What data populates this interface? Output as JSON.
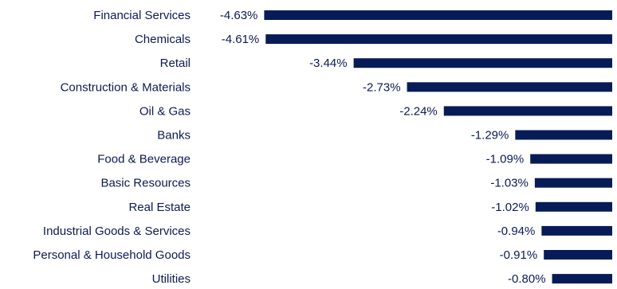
{
  "chart_data": {
    "type": "bar",
    "orientation": "horizontal",
    "categories": [
      "Financial Services",
      "Chemicals",
      "Retail",
      "Construction & Materials",
      "Oil & Gas",
      "Banks",
      "Food & Beverage",
      "Basic Resources",
      "Real Estate",
      "Industrial Goods & Services",
      "Personal & Household Goods",
      "Utilities"
    ],
    "values": [
      -4.63,
      -4.61,
      -3.44,
      -2.73,
      -2.24,
      -1.29,
      -1.09,
      -1.03,
      -1.02,
      -0.94,
      -0.91,
      -0.8
    ],
    "value_labels": [
      "-4.63%",
      "-4.61%",
      "-3.44%",
      "-2.73%",
      "-2.24%",
      "-1.29%",
      "-1.09%",
      "-1.03%",
      "-1.02%",
      "-0.94%",
      "-0.91%",
      "-0.80%"
    ],
    "title": "",
    "xlabel": "",
    "ylabel": "",
    "grid": false,
    "legend": false,
    "colors": {
      "bar": "#071c57",
      "text": "#0c1a54"
    }
  }
}
